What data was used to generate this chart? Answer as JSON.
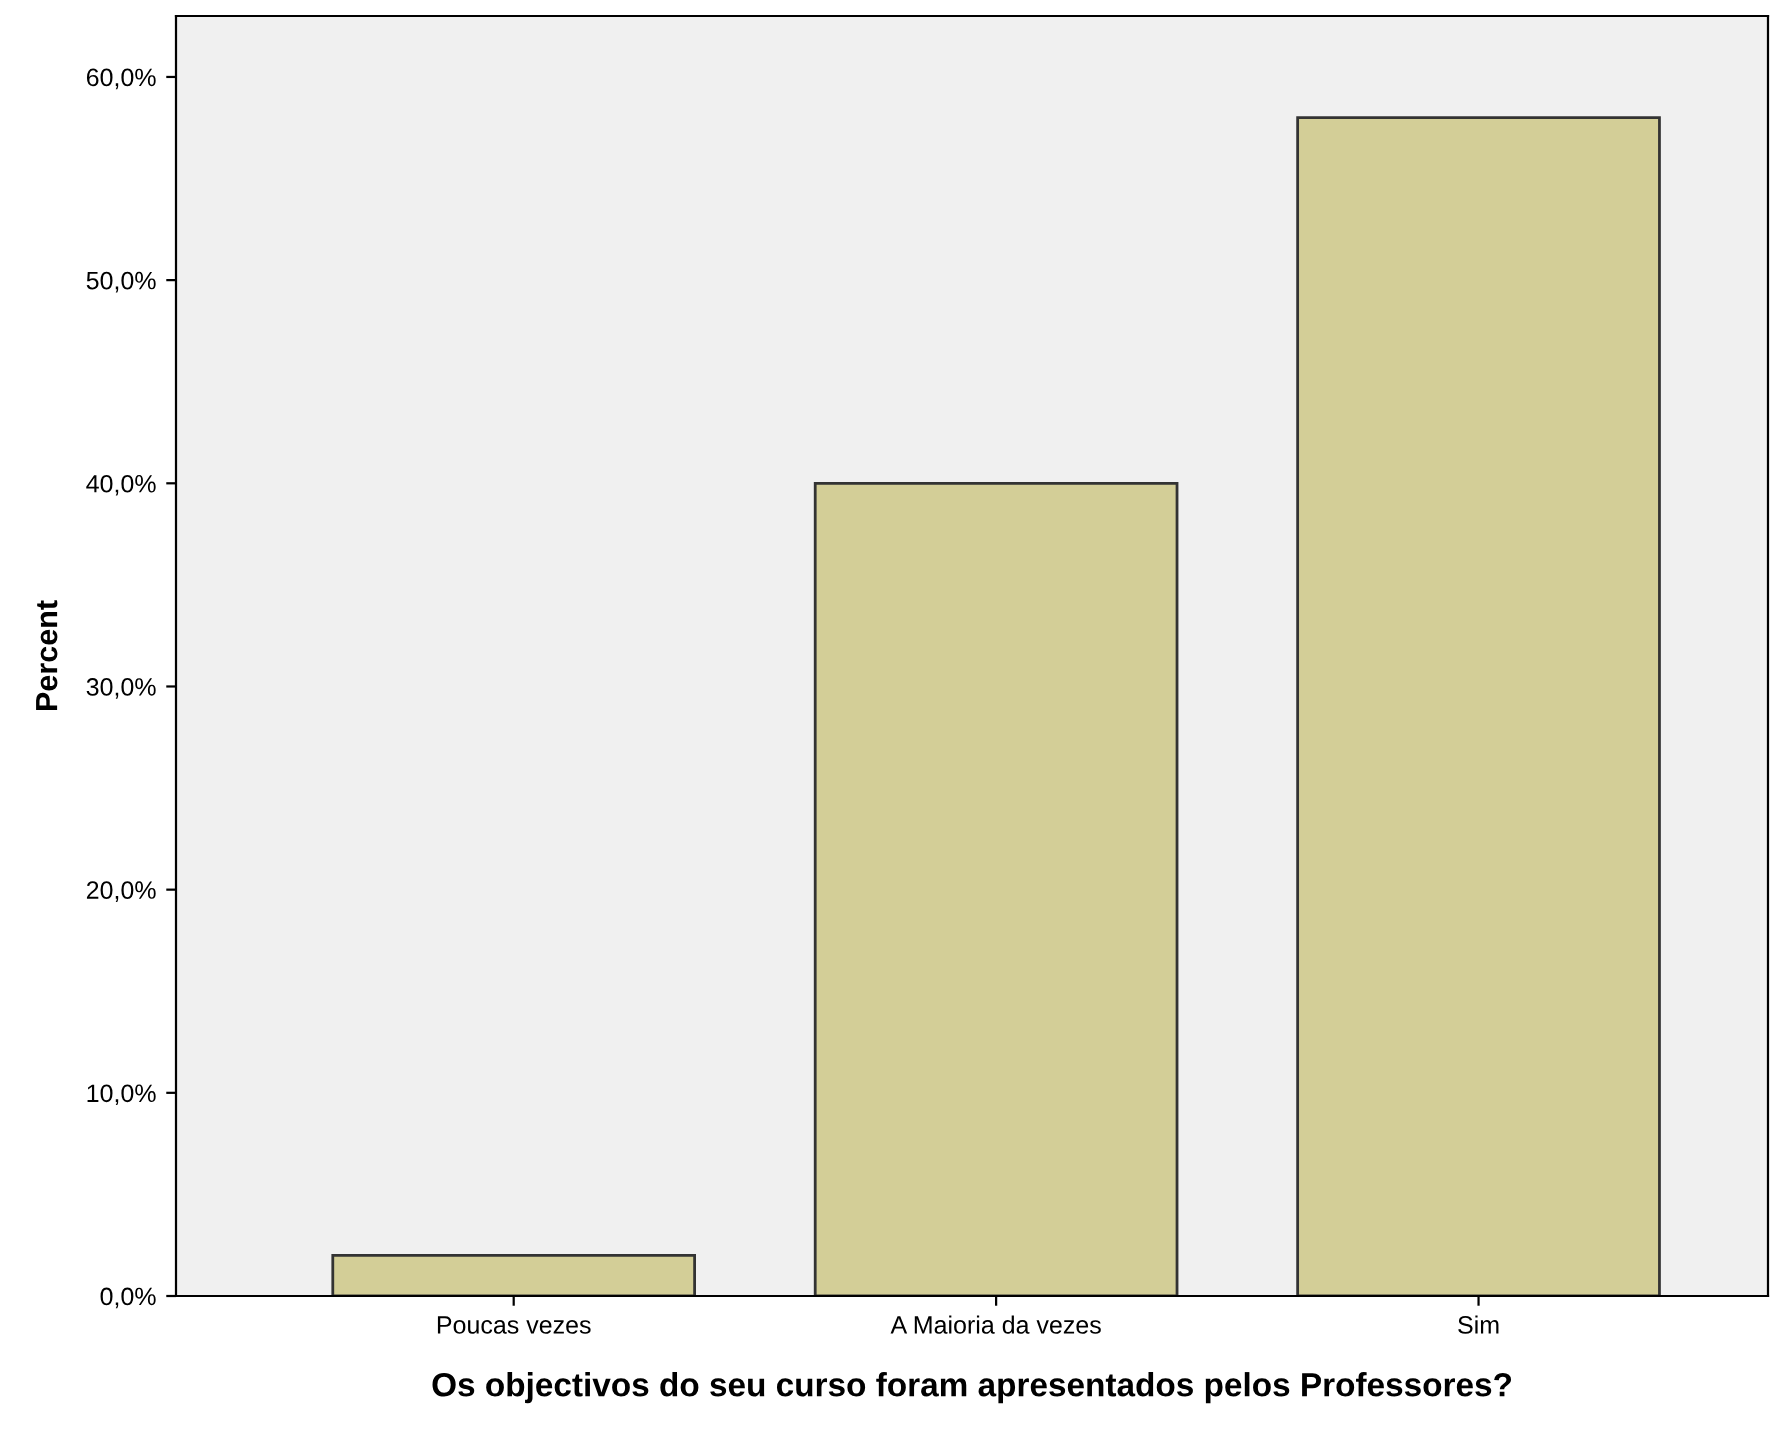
{
  "chart_data": {
    "type": "bar",
    "xlabel": "Os objectivos do seu curso foram apresentados pelos Professores?",
    "ylabel": "Percent",
    "categories": [
      "Poucas vezes",
      "A Maioria da vezes",
      "Sim"
    ],
    "values": [
      2.0,
      40.0,
      58.0
    ],
    "color": "#d3ce97",
    "ylim": [
      0,
      63
    ],
    "yticks": [
      {
        "value": 0,
        "label": "0,0%"
      },
      {
        "value": 10,
        "label": "10,0%"
      },
      {
        "value": 20,
        "label": "20,0%"
      },
      {
        "value": 30,
        "label": "30,0%"
      },
      {
        "value": 40,
        "label": "40,0%"
      },
      {
        "value": 50,
        "label": "50,0%"
      },
      {
        "value": 60,
        "label": "60,0%"
      }
    ],
    "grid": false
  }
}
